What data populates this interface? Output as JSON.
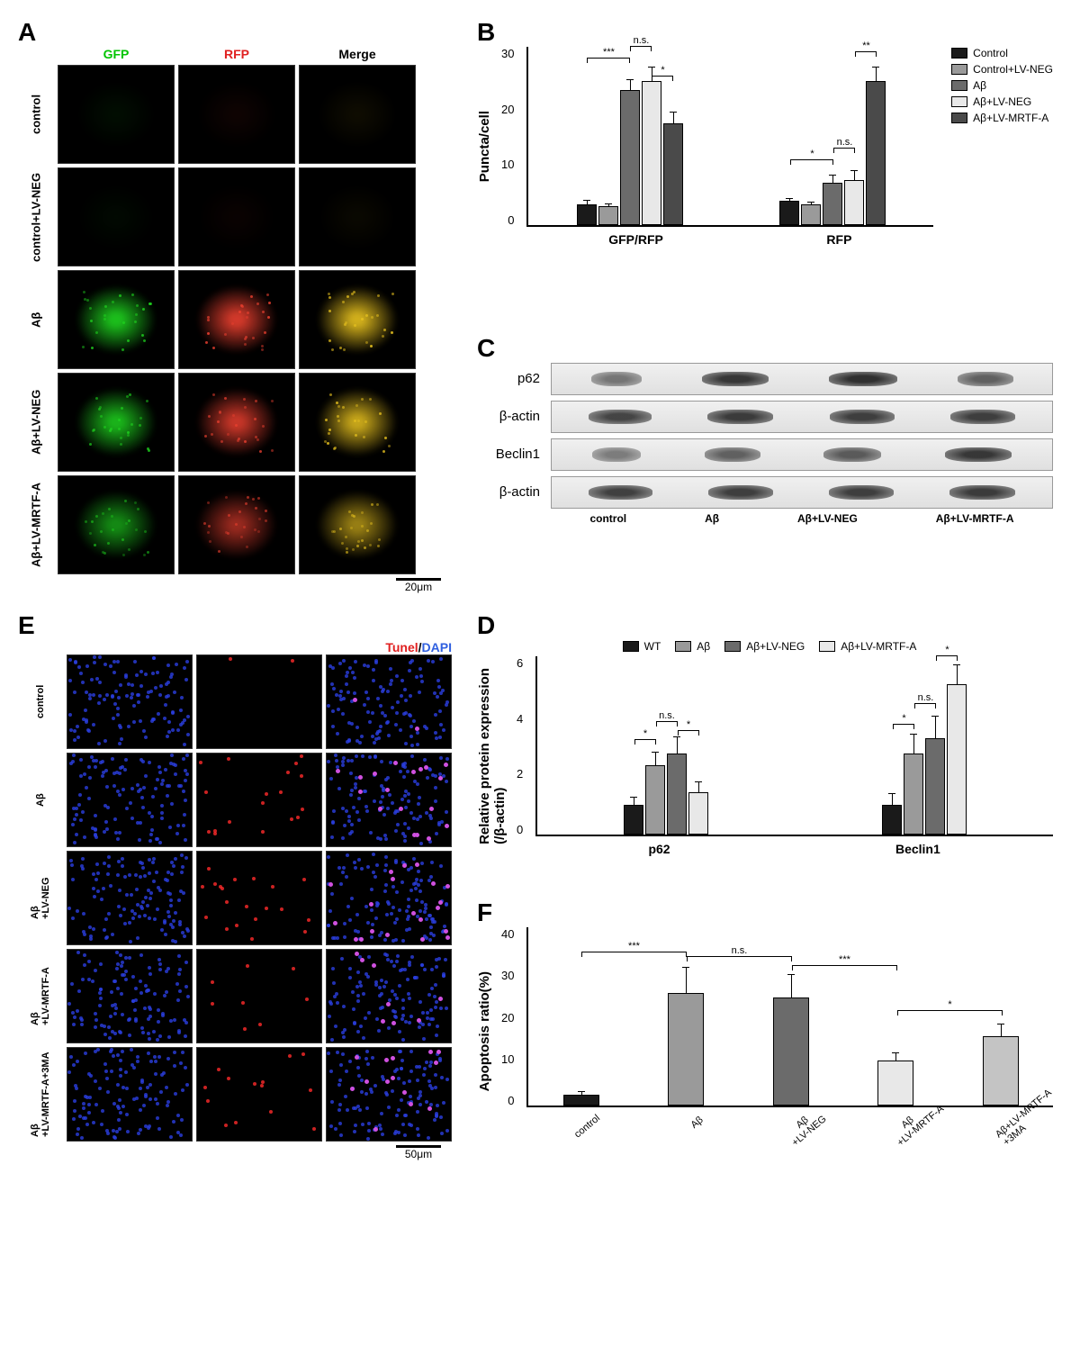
{
  "panelA": {
    "label": "A",
    "headers": {
      "col1": "GFP",
      "col2": "RFP",
      "col3": "Merge"
    },
    "header_colors": {
      "col1": "#00c400",
      "col2": "#e02020",
      "col3": "#000000"
    },
    "rows": [
      "control",
      "control+LV-NEG",
      "Aβ",
      "Aβ+LV-NEG",
      "Aβ+LV-MRTF-A"
    ],
    "intensity_levels": [
      0.06,
      0.04,
      0.9,
      0.85,
      0.65
    ],
    "scale_bar": "20μm",
    "colors": {
      "gfp": "#1fd31f",
      "rfp": "#e83f2f",
      "merge": "#e8c21f",
      "bg": "#000000"
    }
  },
  "panelB": {
    "label": "B",
    "ylabel": "Puncta/cell",
    "ylim": [
      0,
      30
    ],
    "ytick_step": 10,
    "groups": [
      "GFP/RFP",
      "RFP"
    ],
    "series": [
      "Control",
      "Control+LV-NEG",
      "Aβ",
      "Aβ+LV-NEG",
      "Aβ+LV-MRTF-A"
    ],
    "series_colors": [
      "#1a1a1a",
      "#9a9a9a",
      "#6b6b6b",
      "#e8e8e8",
      "#4a4a4a"
    ],
    "values": {
      "GFP/RFP": [
        3.5,
        3.2,
        22.5,
        24.0,
        17.0
      ],
      "RFP": [
        4.0,
        3.5,
        7.0,
        7.5,
        24.0
      ]
    },
    "errors": {
      "GFP/RFP": [
        0.8,
        0.6,
        2.0,
        2.5,
        2.0
      ],
      "RFP": [
        0.6,
        0.5,
        1.5,
        1.8,
        2.5
      ]
    },
    "sig": [
      {
        "group": "GFP/RFP",
        "from": 0,
        "to": 2,
        "label": "***",
        "y": 27
      },
      {
        "group": "GFP/RFP",
        "from": 2,
        "to": 3,
        "label": "n.s.",
        "y": 29
      },
      {
        "group": "GFP/RFP",
        "from": 3,
        "to": 4,
        "label": "*",
        "y": 24
      },
      {
        "group": "RFP",
        "from": 0,
        "to": 2,
        "label": "*",
        "y": 10
      },
      {
        "group": "RFP",
        "from": 2,
        "to": 3,
        "label": "n.s.",
        "y": 12
      },
      {
        "group": "RFP",
        "from": 3,
        "to": 4,
        "label": "**",
        "y": 28
      }
    ]
  },
  "panelC": {
    "label": "C",
    "proteins": [
      "p62",
      "β-actin",
      "Beclin1",
      "β-actin"
    ],
    "conditions": [
      "control",
      "Aβ",
      "Aβ+LV-NEG",
      "Aβ+LV-MRTF-A"
    ],
    "band_intensities": {
      "p62": [
        40,
        85,
        90,
        55
      ],
      "β-actin": [
        75,
        82,
        80,
        80
      ],
      "Beclin1": [
        35,
        55,
        60,
        85
      ],
      "β-actin2": [
        78,
        80,
        80,
        82
      ]
    }
  },
  "panelD": {
    "label": "D",
    "ylabel": "Relative protein expression\n(/β-actin)",
    "ylim": [
      0,
      6
    ],
    "ytick_step": 2,
    "groups": [
      "p62",
      "Beclin1"
    ],
    "series": [
      "WT",
      "Aβ",
      "Aβ+LV-NEG",
      "Aβ+LV-MRTF-A"
    ],
    "series_colors": [
      "#1a1a1a",
      "#9a9a9a",
      "#6b6b6b",
      "#e8e8e8"
    ],
    "values": {
      "p62": [
        1.0,
        2.3,
        2.7,
        1.4
      ],
      "Beclin1": [
        1.0,
        2.7,
        3.2,
        5.0
      ]
    },
    "errors": {
      "p62": [
        0.3,
        0.5,
        0.6,
        0.4
      ],
      "Beclin1": [
        0.4,
        0.7,
        0.8,
        0.7
      ]
    },
    "sig": [
      {
        "group": "p62",
        "from": 0,
        "to": 1,
        "label": "*",
        "y": 3.0
      },
      {
        "group": "p62",
        "from": 1,
        "to": 2,
        "label": "n.s.",
        "y": 3.6
      },
      {
        "group": "p62",
        "from": 2,
        "to": 3,
        "label": "*",
        "y": 3.3
      },
      {
        "group": "Beclin1",
        "from": 0,
        "to": 1,
        "label": "*",
        "y": 3.5
      },
      {
        "group": "Beclin1",
        "from": 1,
        "to": 2,
        "label": "n.s.",
        "y": 4.2
      },
      {
        "group": "Beclin1",
        "from": 2,
        "to": 3,
        "label": "*",
        "y": 5.8
      }
    ]
  },
  "panelE": {
    "label": "E",
    "header": "Tunel/DAPI",
    "header_colors": {
      "tunel": "#e02020",
      "dapi": "#3060e0"
    },
    "rows": [
      "control",
      "Aβ",
      "Aβ\n+LV-NEG",
      "Aβ\n+LV-MRTF-A",
      "Aβ\n+LV-MRTF-A+3MA"
    ],
    "tunel_counts": [
      2,
      18,
      20,
      8,
      14
    ],
    "scale_bar": "50μm",
    "colors": {
      "dapi": "#2a3fe0",
      "tunel": "#ff2a2a",
      "merge": "#d050e0",
      "bg": "#000000"
    }
  },
  "panelF": {
    "label": "F",
    "ylabel": "Apoptosis ratio(%)",
    "ylim": [
      0,
      40
    ],
    "ytick_step": 10,
    "categories": [
      "control",
      "Aβ",
      "Aβ\n+LV-NEG",
      "Aβ\n+LV-MRTF-A",
      "Aβ+LV-MRTF-A\n+3MA"
    ],
    "values": [
      2.5,
      25.0,
      24.0,
      10.0,
      15.5
    ],
    "errors": [
      1.0,
      6.0,
      5.5,
      2.0,
      3.0
    ],
    "colors": [
      "#1a1a1a",
      "#9a9a9a",
      "#6b6b6b",
      "#e8e8e8",
      "#c4c4c4"
    ],
    "sig": [
      {
        "from": 0,
        "to": 1,
        "label": "***",
        "y": 33
      },
      {
        "from": 1,
        "to": 2,
        "label": "n.s.",
        "y": 32
      },
      {
        "from": 2,
        "to": 3,
        "label": "***",
        "y": 30
      },
      {
        "from": 3,
        "to": 4,
        "label": "*",
        "y": 20
      }
    ]
  }
}
